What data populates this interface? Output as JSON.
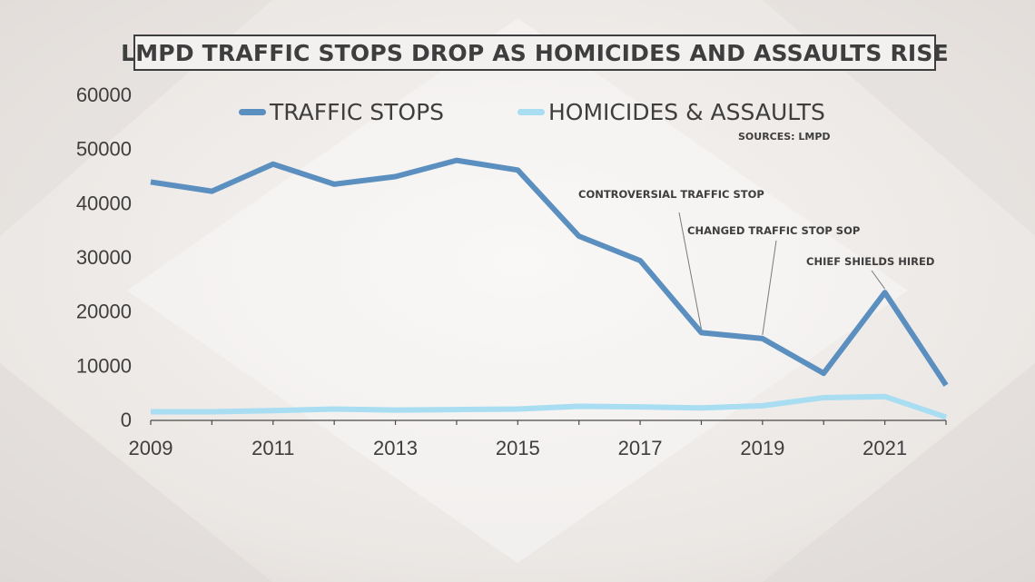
{
  "colors": {
    "traffic_stops": "#5b8fbf",
    "homicides_assaults": "#a8ddf2",
    "text": "#3e3e3e",
    "axis": "#4a4a4a",
    "background": "#ebe7e4"
  },
  "chart_data": {
    "type": "line",
    "title": "LMPD TRAFFIC STOPS DROP AS HOMICIDES AND ASSAULTS RISE",
    "source": "SOURCES: LMPD",
    "x": [
      2009,
      2010,
      2011,
      2012,
      2013,
      2014,
      2015,
      2016,
      2017,
      2018,
      2019,
      2020,
      2021,
      2022
    ],
    "xticks": [
      "2009",
      "2011",
      "2013",
      "2015",
      "2017",
      "2019",
      "2021"
    ],
    "yticks": [
      "0",
      "10000",
      "20000",
      "30000",
      "40000",
      "50000",
      "60000"
    ],
    "ylim": [
      0,
      60000
    ],
    "xlim": [
      2009,
      2022
    ],
    "grid": false,
    "legend_position": "top",
    "series": [
      {
        "name": "TRAFFIC STOPS",
        "values": [
          44000,
          42300,
          47300,
          43600,
          45000,
          48000,
          46200,
          34000,
          29500,
          16200,
          15100,
          8700,
          23600,
          6500
        ]
      },
      {
        "name": "HOMICIDES & ASSAULTS",
        "values": [
          1600,
          1600,
          1800,
          2100,
          1900,
          2000,
          2100,
          2600,
          2500,
          2300,
          2700,
          4200,
          4400,
          600
        ]
      }
    ],
    "annotations": [
      {
        "text": "CONTROVERSIAL TRAFFIC STOP",
        "x": 2018
      },
      {
        "text": "CHANGED TRAFFIC STOP SOP",
        "x": 2019
      },
      {
        "text": "CHIEF SHIELDS HIRED",
        "x": 2021
      }
    ]
  }
}
